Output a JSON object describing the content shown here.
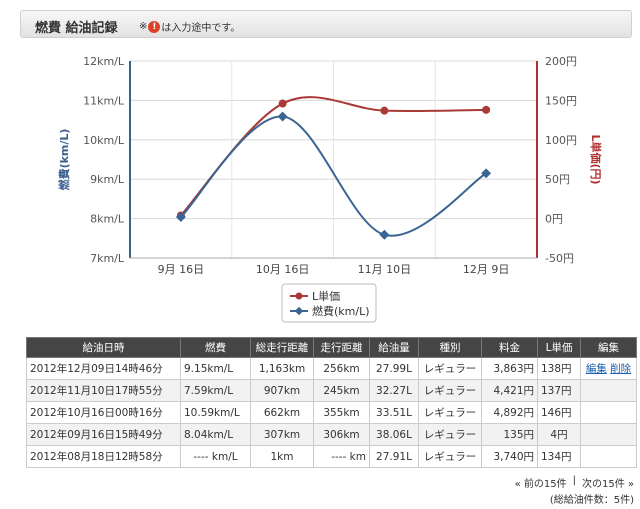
{
  "header": {
    "title": "燃費 給油記録",
    "note_prefix": "※",
    "note_icon": "!",
    "note_suffix": "は入力途中です。"
  },
  "chart_data": {
    "type": "line",
    "categories": [
      "9月 16日",
      "10月 16日",
      "11月 10日",
      "12月 9日"
    ],
    "left_axis": {
      "label": "燃費(km/L)",
      "ticks": [
        "12km/L",
        "11km/L",
        "10km/L",
        "9km/L",
        "8km/L",
        "7km/L"
      ],
      "range": [
        7,
        12
      ],
      "color": "#3b5f8f"
    },
    "right_axis": {
      "label": "L単価(円)",
      "ticks": [
        "200円",
        "150円",
        "100円",
        "50円",
        "0円",
        "-50円"
      ],
      "range": [
        -50,
        200
      ],
      "color": "#b03030"
    },
    "series": [
      {
        "name": "L単価",
        "axis": "right",
        "color": "#a93a35",
        "values": [
          4,
          146,
          137,
          138
        ]
      },
      {
        "name": "燃費(km/L)",
        "axis": "left",
        "color": "#3b6592",
        "values": [
          8.04,
          10.59,
          7.59,
          9.15
        ]
      }
    ],
    "grid": true,
    "legend": "bottom-center"
  },
  "table": {
    "headers": [
      "給油日時",
      "燃費",
      "総走行距離",
      "走行距離",
      "給油量",
      "種別",
      "料金",
      "L単価",
      "編集"
    ],
    "rows": [
      {
        "date": "2012年12月09日14時46分",
        "fuel": "9.15km/L",
        "total": "1,163km",
        "dist": "256km",
        "amount": "27.99L",
        "kind": "レギュラー",
        "price": "3,863円",
        "unit": "138円",
        "edit": "編集",
        "del": "削除"
      },
      {
        "date": "2012年11月10日17時55分",
        "fuel": "7.59km/L",
        "total": "907km",
        "dist": "245km",
        "amount": "32.27L",
        "kind": "レギュラー",
        "price": "4,421円",
        "unit": "137円",
        "edit": "",
        "del": ""
      },
      {
        "date": "2012年10月16日00時16分",
        "fuel": "10.59km/L",
        "total": "662km",
        "dist": "355km",
        "amount": "33.51L",
        "kind": "レギュラー",
        "price": "4,892円",
        "unit": "146円",
        "edit": "",
        "del": ""
      },
      {
        "date": "2012年09月16日15時49分",
        "fuel": "8.04km/L",
        "total": "307km",
        "dist": "306km",
        "amount": "38.06L",
        "kind": "レギュラー",
        "price": "135円",
        "unit": "4円",
        "edit": "",
        "del": ""
      },
      {
        "date": "2012年08月18日12時58分",
        "fuel": "---- km/L",
        "total": "1km",
        "dist": "---- km",
        "amount": "27.91L",
        "kind": "レギュラー",
        "price": "3,740円",
        "unit": "134円",
        "edit": "",
        "del": ""
      }
    ]
  },
  "pager": {
    "prev": "« 前の15件",
    "sep": "|",
    "next": "次の15件 »",
    "total": "(総給油件数：5件)"
  }
}
